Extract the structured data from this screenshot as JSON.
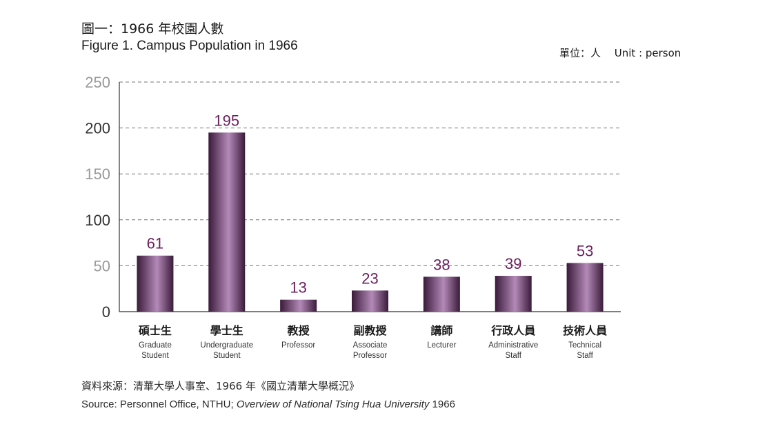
{
  "header": {
    "title_zh": "圖一：1966 年校園人數",
    "title_en": "Figure 1. Campus Population in 1966",
    "unit": "單位：人　 Unit : person"
  },
  "footer": {
    "source_zh": "資料來源：清華大學人事室、1966 年《國立清華大學概況》",
    "source_en_prefix": "Source: Personnel Office, NTHU; ",
    "source_en_italic": "Overview of National Tsing Hua University",
    "source_en_suffix": " 1966"
  },
  "colors": {
    "bar_dark": "#3a1a3a",
    "bar_light": "#b48ab8",
    "value_label": "#6b1f5e",
    "grid": "#777777",
    "tick_dark": "#333333",
    "tick_light": "#999999"
  },
  "chart_data": {
    "type": "bar",
    "categories": [
      {
        "zh": "碩士生",
        "en": [
          "Graduate",
          "Student"
        ]
      },
      {
        "zh": "學士生",
        "en": [
          "Undergraduate",
          "Student"
        ]
      },
      {
        "zh": "教授",
        "en": [
          "Professor"
        ]
      },
      {
        "zh": "副教授",
        "en": [
          "Associate",
          "Professor"
        ]
      },
      {
        "zh": "講師",
        "en": [
          "Lecturer"
        ]
      },
      {
        "zh": "行政人員",
        "en": [
          "Administrative",
          "Staff"
        ]
      },
      {
        "zh": "技術人員",
        "en": [
          "Technical",
          "Staff"
        ]
      }
    ],
    "values": [
      61,
      195,
      13,
      23,
      38,
      39,
      53
    ],
    "ylim": [
      0,
      250
    ],
    "yticks": [
      0,
      50,
      100,
      150,
      200,
      250
    ],
    "grid": "dashed horizontal",
    "legend": "none"
  }
}
